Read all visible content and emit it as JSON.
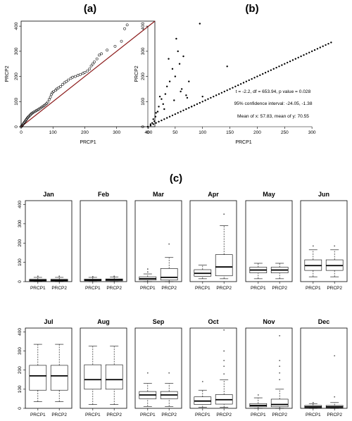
{
  "figure": {
    "panel_labels": [
      "(a)",
      "(b)",
      "(c)"
    ]
  },
  "chart_data": [
    {
      "id": "a",
      "type": "scatter",
      "title": "(a)",
      "xlabel": "PRCP1",
      "ylabel": "PRCP2",
      "xlim": [
        0,
        420
      ],
      "ylim": [
        0,
        420
      ],
      "x_ticks": [
        0,
        100,
        200,
        300,
        400
      ],
      "y_ticks": [
        0,
        100,
        200,
        300,
        400
      ],
      "reference_line": {
        "slope": 1,
        "intercept": 0,
        "color": "#8b1a1a"
      },
      "points": [
        [
          0,
          0
        ],
        [
          2,
          3
        ],
        [
          4,
          6
        ],
        [
          6,
          10
        ],
        [
          8,
          13
        ],
        [
          10,
          17
        ],
        [
          12,
          20
        ],
        [
          14,
          24
        ],
        [
          16,
          28
        ],
        [
          18,
          31
        ],
        [
          20,
          35
        ],
        [
          22,
          38
        ],
        [
          25,
          42
        ],
        [
          28,
          46
        ],
        [
          30,
          49
        ],
        [
          33,
          52
        ],
        [
          36,
          55
        ],
        [
          40,
          58
        ],
        [
          44,
          61
        ],
        [
          48,
          64
        ],
        [
          52,
          67
        ],
        [
          56,
          70
        ],
        [
          60,
          74
        ],
        [
          64,
          77
        ],
        [
          68,
          80
        ],
        [
          72,
          84
        ],
        [
          76,
          88
        ],
        [
          80,
          92
        ],
        [
          84,
          98
        ],
        [
          88,
          108
        ],
        [
          92,
          118
        ],
        [
          95,
          128
        ],
        [
          98,
          135
        ],
        [
          102,
          140
        ],
        [
          108,
          145
        ],
        [
          112,
          150
        ],
        [
          118,
          155
        ],
        [
          124,
          160
        ],
        [
          130,
          168
        ],
        [
          136,
          175
        ],
        [
          142,
          180
        ],
        [
          148,
          186
        ],
        [
          156,
          192
        ],
        [
          162,
          197
        ],
        [
          170,
          200
        ],
        [
          178,
          204
        ],
        [
          186,
          208
        ],
        [
          194,
          212
        ],
        [
          200,
          216
        ],
        [
          208,
          222
        ],
        [
          215,
          230
        ],
        [
          220,
          242
        ],
        [
          225,
          250
        ],
        [
          230,
          258
        ],
        [
          238,
          270
        ],
        [
          245,
          285
        ],
        [
          252,
          290
        ],
        [
          270,
          305
        ],
        [
          295,
          320
        ],
        [
          315,
          340
        ],
        [
          325,
          390
        ],
        [
          333,
          405
        ]
      ]
    },
    {
      "id": "b",
      "type": "scatter",
      "title": "(b)",
      "xlabel": "PRCP1",
      "ylabel": "PRCP2",
      "xlim": [
        0,
        350
      ],
      "ylim": [
        0,
        420
      ],
      "x_ticks": [
        0,
        50,
        100,
        150,
        200,
        250,
        300
      ],
      "y_ticks": [
        0,
        100,
        200,
        300,
        400
      ],
      "annotations": [
        "t = -2.2, df = 653.94, p value = 0.028",
        "95% confidence interval: -24.05, -1.38",
        "Mean of x: 57.83,  mean of y: 70.55"
      ],
      "diagonal_points": [
        [
          0,
          0
        ],
        [
          5,
          5
        ],
        [
          10,
          10
        ],
        [
          15,
          15
        ],
        [
          20,
          20
        ],
        [
          25,
          25
        ],
        [
          30,
          30
        ],
        [
          35,
          35
        ],
        [
          40,
          40
        ],
        [
          45,
          45
        ],
        [
          50,
          50
        ],
        [
          55,
          55
        ],
        [
          60,
          60
        ],
        [
          65,
          65
        ],
        [
          70,
          70
        ],
        [
          75,
          75
        ],
        [
          80,
          80
        ],
        [
          85,
          85
        ],
        [
          90,
          90
        ],
        [
          95,
          95
        ],
        [
          100,
          100
        ],
        [
          105,
          105
        ],
        [
          110,
          110
        ],
        [
          115,
          115
        ],
        [
          120,
          120
        ],
        [
          125,
          125
        ],
        [
          130,
          130
        ],
        [
          135,
          135
        ],
        [
          140,
          140
        ],
        [
          145,
          145
        ],
        [
          150,
          150
        ],
        [
          155,
          155
        ],
        [
          160,
          160
        ],
        [
          165,
          165
        ],
        [
          170,
          170
        ],
        [
          175,
          175
        ],
        [
          180,
          180
        ],
        [
          185,
          185
        ],
        [
          190,
          190
        ],
        [
          195,
          195
        ],
        [
          200,
          200
        ],
        [
          205,
          205
        ],
        [
          210,
          210
        ],
        [
          215,
          215
        ],
        [
          220,
          220
        ],
        [
          225,
          225
        ],
        [
          230,
          230
        ],
        [
          235,
          235
        ],
        [
          240,
          240
        ],
        [
          245,
          245
        ],
        [
          250,
          250
        ],
        [
          255,
          255
        ],
        [
          260,
          260
        ],
        [
          265,
          265
        ],
        [
          270,
          270
        ],
        [
          275,
          275
        ],
        [
          280,
          280
        ],
        [
          285,
          285
        ],
        [
          290,
          290
        ],
        [
          295,
          295
        ],
        [
          300,
          300
        ],
        [
          305,
          305
        ],
        [
          310,
          310
        ],
        [
          315,
          315
        ],
        [
          320,
          320
        ],
        [
          325,
          325
        ],
        [
          330,
          330
        ],
        [
          335,
          335
        ]
      ],
      "outlier_points": [
        [
          5,
          10
        ],
        [
          8,
          15
        ],
        [
          10,
          30
        ],
        [
          12,
          22
        ],
        [
          14,
          40
        ],
        [
          15,
          55
        ],
        [
          18,
          60
        ],
        [
          20,
          80
        ],
        [
          22,
          120
        ],
        [
          25,
          110
        ],
        [
          28,
          90
        ],
        [
          30,
          70
        ],
        [
          32,
          130
        ],
        [
          35,
          160
        ],
        [
          38,
          270
        ],
        [
          40,
          180
        ],
        [
          45,
          230
        ],
        [
          48,
          105
        ],
        [
          50,
          200
        ],
        [
          52,
          350
        ],
        [
          55,
          300
        ],
        [
          58,
          250
        ],
        [
          60,
          140
        ],
        [
          62,
          150
        ],
        [
          65,
          280
        ],
        [
          70,
          125
        ],
        [
          72,
          115
        ],
        [
          75,
          180
        ],
        [
          80,
          80
        ],
        [
          95,
          410
        ],
        [
          100,
          120
        ],
        [
          145,
          240
        ]
      ]
    },
    {
      "id": "c",
      "type": "boxplot",
      "title": "(c)",
      "groups": [
        "PRCP1",
        "PRCP2"
      ],
      "y_ticks": [
        0,
        100,
        200,
        300,
        400
      ],
      "ylim": [
        0,
        420
      ],
      "panels": [
        {
          "month": "Jan",
          "boxes": [
            {
              "name": "PRCP1",
              "min": 0,
              "q1": 3,
              "median": 7,
              "q3": 12,
              "max": 22,
              "outliers": [
                28
              ]
            },
            {
              "name": "PRCP2",
              "min": 0,
              "q1": 3,
              "median": 7,
              "q3": 12,
              "max": 22,
              "outliers": [
                28
              ]
            }
          ]
        },
        {
          "month": "Feb",
          "boxes": [
            {
              "name": "PRCP1",
              "min": 0,
              "q1": 4,
              "median": 8,
              "q3": 13,
              "max": 22,
              "outliers": [
                26
              ]
            },
            {
              "name": "PRCP2",
              "min": 0,
              "q1": 4,
              "median": 9,
              "q3": 14,
              "max": 24,
              "outliers": [
                28
              ]
            }
          ]
        },
        {
          "month": "Mar",
          "boxes": [
            {
              "name": "PRCP1",
              "min": 0,
              "q1": 8,
              "median": 15,
              "q3": 25,
              "max": 40,
              "outliers": [
                50,
                65
              ]
            },
            {
              "name": "PRCP2",
              "min": 0,
              "q1": 8,
              "median": 22,
              "q3": 68,
              "max": 125,
              "outliers": [
                195
              ]
            }
          ]
        },
        {
          "month": "Apr",
          "boxes": [
            {
              "name": "PRCP1",
              "min": 15,
              "q1": 28,
              "median": 43,
              "q3": 62,
              "max": 85,
              "outliers": []
            },
            {
              "name": "PRCP2",
              "min": 15,
              "q1": 30,
              "median": 76,
              "q3": 140,
              "max": 290,
              "outliers": [
                350
              ]
            }
          ]
        },
        {
          "month": "May",
          "boxes": [
            {
              "name": "PRCP1",
              "min": 15,
              "q1": 45,
              "median": 60,
              "q3": 75,
              "max": 95,
              "outliers": []
            },
            {
              "name": "PRCP2",
              "min": 15,
              "q1": 45,
              "median": 60,
              "q3": 75,
              "max": 95,
              "outliers": []
            }
          ]
        },
        {
          "month": "Jun",
          "boxes": [
            {
              "name": "PRCP1",
              "min": 25,
              "q1": 58,
              "median": 83,
              "q3": 113,
              "max": 165,
              "outliers": [
                185
              ]
            },
            {
              "name": "PRCP2",
              "min": 25,
              "q1": 58,
              "median": 83,
              "q3": 113,
              "max": 165,
              "outliers": [
                185
              ]
            }
          ]
        },
        {
          "month": "Jul",
          "boxes": [
            {
              "name": "PRCP1",
              "min": 35,
              "q1": 95,
              "median": 170,
              "q3": 225,
              "max": 335,
              "outliers": []
            },
            {
              "name": "PRCP2",
              "min": 35,
              "q1": 95,
              "median": 170,
              "q3": 225,
              "max": 335,
              "outliers": []
            }
          ]
        },
        {
          "month": "Aug",
          "boxes": [
            {
              "name": "PRCP1",
              "min": 20,
              "q1": 100,
              "median": 150,
              "q3": 228,
              "max": 325,
              "outliers": []
            },
            {
              "name": "PRCP2",
              "min": 20,
              "q1": 100,
              "median": 150,
              "q3": 228,
              "max": 325,
              "outliers": []
            }
          ]
        },
        {
          "month": "Sep",
          "boxes": [
            {
              "name": "PRCP1",
              "min": 10,
              "q1": 50,
              "median": 70,
              "q3": 88,
              "max": 130,
              "outliers": [
                185
              ]
            },
            {
              "name": "PRCP2",
              "min": 10,
              "q1": 50,
              "median": 70,
              "q3": 88,
              "max": 130,
              "outliers": [
                185
              ]
            }
          ]
        },
        {
          "month": "Oct",
          "boxes": [
            {
              "name": "PRCP1",
              "min": 5,
              "q1": 20,
              "median": 38,
              "q3": 60,
              "max": 95,
              "outliers": [
                140
              ]
            },
            {
              "name": "PRCP2",
              "min": 5,
              "q1": 22,
              "median": 45,
              "q3": 72,
              "max": 150,
              "outliers": [
                180,
                220,
                250,
                300,
                410
              ]
            }
          ]
        },
        {
          "month": "Nov",
          "boxes": [
            {
              "name": "PRCP1",
              "min": 0,
              "q1": 8,
              "median": 15,
              "q3": 25,
              "max": 55,
              "outliers": [
                70
              ]
            },
            {
              "name": "PRCP2",
              "min": 0,
              "q1": 8,
              "median": 20,
              "q3": 48,
              "max": 100,
              "outliers": [
                150,
                185,
                220,
                250,
                380
              ]
            }
          ]
        },
        {
          "month": "Dec",
          "boxes": [
            {
              "name": "PRCP1",
              "min": 0,
              "q1": 3,
              "median": 8,
              "q3": 15,
              "max": 25,
              "outliers": [
                30
              ]
            },
            {
              "name": "PRCP2",
              "min": 0,
              "q1": 3,
              "median": 8,
              "q3": 15,
              "max": 30,
              "outliers": [
                60,
                275
              ]
            }
          ]
        }
      ]
    }
  ]
}
